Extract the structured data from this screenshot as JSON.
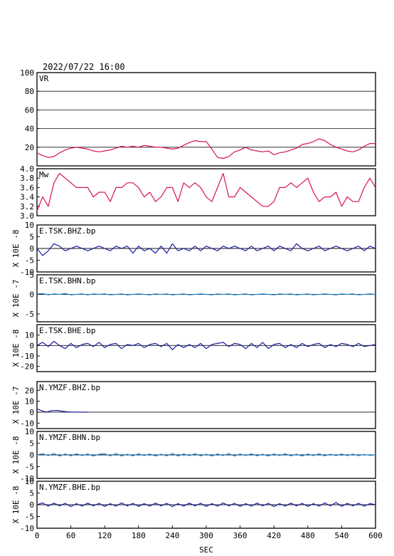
{
  "figure": {
    "title": "2022/07/22  16:00",
    "xlabel": "SEC"
  },
  "chart_data": [
    {
      "type": "line",
      "name": "VR",
      "label": "VR",
      "ylim": [
        0,
        100
      ],
      "yticks": [
        "20",
        "40",
        "60",
        "80",
        "100"
      ],
      "ygrid": [
        20,
        40,
        60,
        80
      ],
      "ylabel": "",
      "color": "#d81448",
      "grid": true,
      "x": [
        0,
        10,
        20,
        30,
        40,
        50,
        60,
        70,
        80,
        90,
        100,
        110,
        120,
        130,
        140,
        150,
        160,
        170,
        180,
        190,
        200,
        210,
        220,
        230,
        240,
        250,
        260,
        270,
        280,
        290,
        300,
        310,
        320,
        330,
        340,
        350,
        360,
        370,
        380,
        390,
        400,
        410,
        420,
        430,
        440,
        450,
        460,
        470,
        480,
        490,
        500,
        510,
        520,
        530,
        540,
        550,
        560,
        570,
        580,
        590,
        600
      ],
      "values": [
        14,
        11,
        9,
        10,
        14,
        17,
        19,
        20,
        19,
        18,
        16,
        15,
        16,
        17,
        19,
        21,
        20,
        21,
        20,
        22,
        21,
        20,
        20,
        19,
        18,
        19,
        22,
        25,
        27,
        26,
        26,
        18,
        9,
        8,
        10,
        15,
        17,
        20,
        17,
        16,
        15,
        16,
        12,
        14,
        15,
        17,
        19,
        23,
        24,
        26,
        29,
        27,
        23,
        20,
        18,
        16,
        15,
        17,
        21,
        24,
        24
      ]
    },
    {
      "type": "line",
      "name": "Mw",
      "label": "Mw",
      "ylim": [
        3.0,
        4.0
      ],
      "yticks": [
        "3.0",
        "3.2",
        "3.4",
        "3.6",
        "3.8",
        "4.0"
      ],
      "ylabel": "",
      "color": "#d81448",
      "grid": false,
      "x": [
        0,
        10,
        20,
        30,
        40,
        50,
        60,
        70,
        80,
        90,
        100,
        110,
        120,
        130,
        140,
        150,
        160,
        170,
        180,
        190,
        200,
        210,
        220,
        230,
        240,
        250,
        260,
        270,
        280,
        290,
        300,
        310,
        320,
        330,
        340,
        350,
        360,
        370,
        380,
        390,
        400,
        410,
        420,
        430,
        440,
        450,
        460,
        470,
        480,
        490,
        500,
        510,
        520,
        530,
        540,
        550,
        560,
        570,
        580,
        590,
        600
      ],
      "values": [
        3.1,
        3.4,
        3.2,
        3.7,
        3.9,
        3.8,
        3.7,
        3.6,
        3.6,
        3.6,
        3.4,
        3.5,
        3.5,
        3.3,
        3.6,
        3.6,
        3.7,
        3.7,
        3.6,
        3.4,
        3.5,
        3.3,
        3.4,
        3.6,
        3.6,
        3.3,
        3.7,
        3.6,
        3.7,
        3.6,
        3.4,
        3.3,
        3.6,
        3.9,
        3.4,
        3.4,
        3.6,
        3.5,
        3.4,
        3.3,
        3.2,
        3.2,
        3.3,
        3.6,
        3.6,
        3.7,
        3.6,
        3.7,
        3.8,
        3.5,
        3.3,
        3.4,
        3.4,
        3.5,
        3.2,
        3.4,
        3.3,
        3.3,
        3.6,
        3.8,
        3.6
      ]
    },
    {
      "type": "line",
      "name": "E.TSK.BHZ.bp",
      "label": "E.TSK.BHZ.bp",
      "ylim": [
        -10,
        10
      ],
      "yticks": [
        "-10",
        "-5",
        "0",
        "5",
        "10"
      ],
      "ylabel": "X 10E -8",
      "color": "#1a1aa0",
      "zero_line": true,
      "x": [
        0,
        10,
        20,
        30,
        40,
        50,
        60,
        70,
        80,
        90,
        100,
        110,
        120,
        130,
        140,
        150,
        160,
        170,
        180,
        190,
        200,
        210,
        220,
        230,
        240,
        250,
        260,
        270,
        280,
        290,
        300,
        310,
        320,
        330,
        340,
        350,
        360,
        370,
        380,
        390,
        400,
        410,
        420,
        430,
        440,
        450,
        460,
        470,
        480,
        490,
        500,
        510,
        520,
        530,
        540,
        550,
        560,
        570,
        580,
        590,
        600
      ],
      "values": [
        0,
        -3,
        -1,
        2,
        1,
        -1,
        0,
        1,
        0,
        -1,
        0,
        1,
        0,
        -1,
        1,
        0,
        1,
        -2,
        1,
        -1,
        0,
        -2,
        1,
        -2,
        2,
        -1,
        0,
        -1,
        1,
        -1,
        1,
        0,
        -1,
        1,
        0,
        1,
        0,
        -1,
        1,
        -1,
        0,
        1,
        -1,
        1,
        0,
        -1,
        2,
        0,
        -1,
        0,
        1,
        -1,
        0,
        1,
        0,
        -1,
        0,
        1,
        -1,
        1,
        0
      ]
    },
    {
      "type": "line",
      "name": "E.TSK.BHN.bp",
      "label": "E.TSK.BHN.bp",
      "ylim": [
        -7,
        5
      ],
      "yticks": [
        "-5",
        "0",
        "5"
      ],
      "ylabel": "X 10E -7",
      "color": "#1e88d8",
      "zero_line": true,
      "x": [
        0,
        10,
        20,
        30,
        40,
        50,
        60,
        70,
        80,
        90,
        100,
        110,
        120,
        130,
        140,
        150,
        160,
        170,
        180,
        190,
        200,
        210,
        220,
        230,
        240,
        250,
        260,
        270,
        280,
        290,
        300,
        310,
        320,
        330,
        340,
        350,
        360,
        370,
        380,
        390,
        400,
        410,
        420,
        430,
        440,
        450,
        460,
        470,
        480,
        490,
        500,
        510,
        520,
        530,
        540,
        550,
        560,
        570,
        580,
        590,
        600
      ],
      "values": [
        0.1,
        0.2,
        -0.1,
        0.1,
        0,
        0.2,
        -0.1,
        0,
        0.1,
        -0.1,
        0.1,
        0,
        0.1,
        -0.1,
        0,
        0.1,
        -0.1,
        0,
        0.1,
        0,
        -0.1,
        0.1,
        0,
        0.1,
        -0.1,
        0,
        0.1,
        -0.1,
        0,
        0.1,
        0,
        -0.1,
        0.1,
        0,
        0.1,
        -0.1,
        0,
        0.1,
        -0.1,
        0,
        0.1,
        0,
        -0.1,
        0.1,
        0,
        0.1,
        -0.1,
        0,
        0.1,
        -0.1,
        0,
        0.1,
        0,
        -0.1,
        0.1,
        0,
        0.1,
        -0.1,
        0,
        0.1,
        0
      ]
    },
    {
      "type": "line",
      "name": "E.TSK.BHE.bp",
      "label": "E.TSK.BHE.bp",
      "ylim": [
        -25,
        20
      ],
      "yticks": [
        "-20",
        "-10",
        "0",
        "10"
      ],
      "ylabel": "X 10E -8",
      "color": "#1a1aa0",
      "zero_line": true,
      "x": [
        0,
        10,
        20,
        30,
        40,
        50,
        60,
        70,
        80,
        90,
        100,
        110,
        120,
        130,
        140,
        150,
        160,
        170,
        180,
        190,
        200,
        210,
        220,
        230,
        240,
        250,
        260,
        270,
        280,
        290,
        300,
        310,
        320,
        330,
        340,
        350,
        360,
        370,
        380,
        390,
        400,
        410,
        420,
        430,
        440,
        450,
        460,
        470,
        480,
        490,
        500,
        510,
        520,
        530,
        540,
        550,
        560,
        570,
        580,
        590,
        600
      ],
      "values": [
        0,
        3,
        -1,
        4,
        0,
        -3,
        2,
        -2,
        1,
        2,
        -1,
        3,
        -2,
        1,
        2,
        -3,
        1,
        0,
        2,
        -2,
        1,
        2,
        -1,
        2,
        -4,
        1,
        -2,
        1,
        -2,
        2,
        -3,
        1,
        2,
        3,
        -1,
        2,
        1,
        -3,
        2,
        -2,
        3,
        -3,
        1,
        2,
        -2,
        1,
        -2,
        2,
        -1,
        1,
        2,
        -2,
        1,
        -1,
        2,
        1,
        -1,
        2,
        -1,
        0,
        1
      ]
    },
    {
      "type": "line",
      "name": "N.YMZF.BHZ.bp",
      "label": "N.YMZF.BHZ.bp",
      "ylim": [
        -15,
        28
      ],
      "yticks": [
        "-10",
        "0",
        "10",
        "20"
      ],
      "ylabel": "X 10E -7",
      "color": "#1a1aa0",
      "zero_line": true,
      "x": [
        0,
        5,
        10,
        15,
        20,
        25,
        30,
        35,
        40,
        45,
        50,
        55,
        60,
        65,
        70,
        80,
        90
      ],
      "values": [
        3.0,
        2.0,
        1.0,
        0.2,
        0.5,
        1.2,
        1.5,
        1.6,
        1.3,
        0.9,
        0.6,
        0.3,
        0.2,
        0.1,
        0.1,
        0.1,
        0
      ]
    },
    {
      "type": "line",
      "name": "N.YMZF.BHN.bp",
      "label": "N.YMZF.BHN.bp",
      "ylim": [
        -10,
        10
      ],
      "yticks": [
        "-10",
        "-5",
        "0",
        "5",
        "10"
      ],
      "ylabel": "X 10E -8",
      "color": "#1e88d8",
      "zero_line": true,
      "x": [
        0,
        10,
        20,
        30,
        40,
        50,
        60,
        70,
        80,
        90,
        100,
        110,
        120,
        130,
        140,
        150,
        160,
        170,
        180,
        190,
        200,
        210,
        220,
        230,
        240,
        250,
        260,
        270,
        280,
        290,
        300,
        310,
        320,
        330,
        340,
        350,
        360,
        370,
        380,
        390,
        400,
        410,
        420,
        430,
        440,
        450,
        460,
        470,
        480,
        490,
        500,
        510,
        520,
        530,
        540,
        550,
        560,
        570,
        580,
        590,
        600
      ],
      "values": [
        0,
        0.5,
        -0.3,
        0.6,
        -0.5,
        0.4,
        -0.4,
        0.5,
        -0.3,
        0.4,
        -0.5,
        0.3,
        0.5,
        -0.4,
        0.6,
        -0.5,
        0.3,
        -0.4,
        0.5,
        -0.3,
        0.4,
        -0.5,
        0.3,
        -0.4,
        0.6,
        -0.5,
        0.4,
        -0.3,
        0.5,
        -0.4,
        0.3,
        -0.5,
        0.4,
        -0.3,
        0.6,
        -0.5,
        0.4,
        -0.3,
        0.5,
        -0.4,
        0.3,
        -0.5,
        0.4,
        -0.3,
        0.5,
        -0.4,
        0.3,
        -0.5,
        0.4,
        -0.3,
        0.5,
        -0.4,
        0.3,
        -0.3,
        0.4,
        -0.3,
        0.3,
        -0.3,
        0.2,
        -0.2,
        0
      ]
    },
    {
      "type": "line",
      "name": "N.YMZF.BHE.bp",
      "label": "N.YMZF.BHE.bp",
      "ylim": [
        -10,
        10
      ],
      "yticks": [
        "-10",
        "-5",
        "0",
        "5",
        "10"
      ],
      "ylabel": "X 10E -8",
      "color": "#1a1aa0",
      "zero_line": true,
      "x": [
        0,
        10,
        20,
        30,
        40,
        50,
        60,
        70,
        80,
        90,
        100,
        110,
        120,
        130,
        140,
        150,
        160,
        170,
        180,
        190,
        200,
        210,
        220,
        230,
        240,
        250,
        260,
        270,
        280,
        290,
        300,
        310,
        320,
        330,
        340,
        350,
        360,
        370,
        380,
        390,
        400,
        410,
        420,
        430,
        440,
        450,
        460,
        470,
        480,
        490,
        500,
        510,
        520,
        530,
        540,
        550,
        560,
        570,
        580,
        590,
        600
      ],
      "values": [
        0,
        0.8,
        -0.6,
        0.7,
        -0.5,
        0.6,
        -0.8,
        0.5,
        -0.6,
        0.7,
        -0.5,
        0.6,
        -0.7,
        0.5,
        -0.6,
        0.8,
        -0.5,
        0.6,
        -0.7,
        0.5,
        -0.6,
        0.7,
        -0.5,
        0.6,
        -0.8,
        0.5,
        -0.6,
        0.7,
        -0.5,
        0.6,
        -0.7,
        0.5,
        -0.6,
        0.8,
        -0.5,
        0.6,
        -0.7,
        0.5,
        -0.6,
        0.7,
        -0.5,
        0.6,
        -0.8,
        0.5,
        -0.6,
        0.7,
        -0.5,
        0.6,
        -0.7,
        0.5,
        -0.6,
        0.8,
        -0.5,
        1.0,
        -0.7,
        0.6,
        -0.5,
        0.6,
        -0.6,
        0.5,
        0
      ]
    }
  ],
  "xaxis": {
    "xlim": [
      0,
      600
    ],
    "ticks": [
      "0",
      "60",
      "120",
      "180",
      "240",
      "300",
      "360",
      "420",
      "480",
      "540",
      "600"
    ]
  }
}
